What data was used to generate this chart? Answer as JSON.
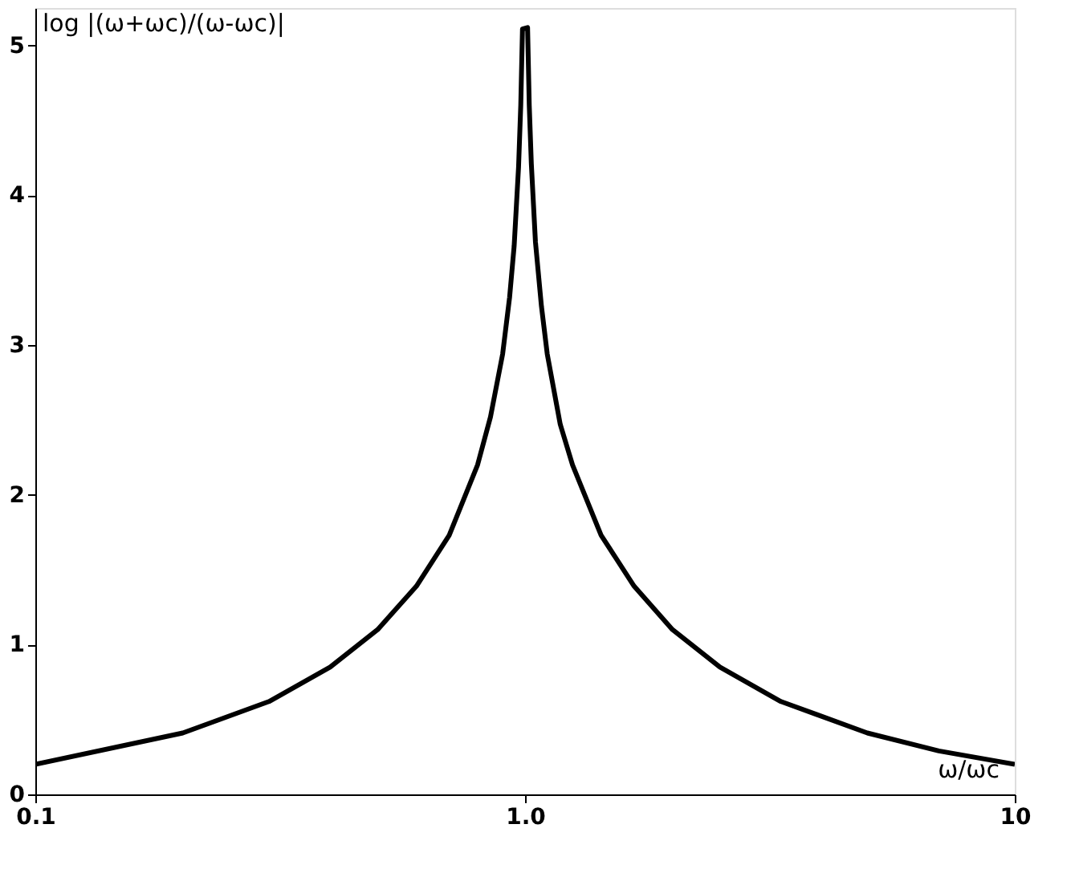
{
  "chart_data": {
    "type": "line",
    "xlabel": "ω/ωc",
    "ylabel": "log |(ω+ωc)/(ω-ωc)|",
    "x": [
      0.1,
      0.2,
      0.3,
      0.4,
      0.5,
      0.6,
      0.7,
      0.8,
      0.85,
      0.9,
      0.93,
      0.95,
      0.97,
      0.98,
      0.988,
      1.012,
      1.02,
      1.03,
      1.05,
      1.08,
      1.11,
      1.18,
      1.25,
      1.43,
      1.67,
      2,
      2.5,
      3.33,
      5,
      7,
      10
    ],
    "series": [
      {
        "color": "#000000",
        "values": [
          0.2,
          0.41,
          0.62,
          0.85,
          1.1,
          1.39,
          1.73,
          2.2,
          2.52,
          2.94,
          3.32,
          3.66,
          4.19,
          4.6,
          5.11,
          5.12,
          4.6,
          4.21,
          3.69,
          3.26,
          2.94,
          2.47,
          2.2,
          1.73,
          1.39,
          1.1,
          0.85,
          0.62,
          0.41,
          0.29,
          0.2
        ]
      }
    ],
    "log": "x",
    "xlim": [
      0.1,
      10
    ],
    "xticks": [
      0.1,
      {
        "value": 1,
        "label": "1.0"
      },
      10
    ],
    "ylim": [
      0,
      5.25
    ],
    "yticks": [
      0,
      1,
      2,
      3,
      4,
      5
    ],
    "grid": false,
    "line_style": "solid",
    "marker": "none"
  }
}
